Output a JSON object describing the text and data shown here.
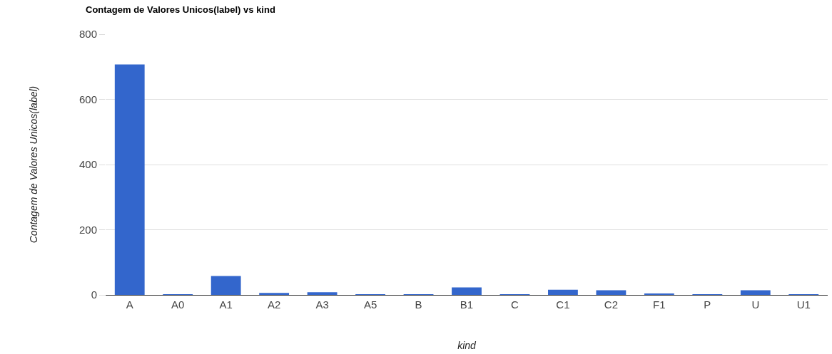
{
  "chart_data": {
    "type": "bar",
    "title": "Contagem de Valores Unicos(label) vs kind",
    "xlabel": "kind",
    "ylabel": "Contagem de Valores Unicos(label)",
    "categories": [
      "A",
      "A0",
      "A1",
      "A2",
      "A3",
      "A5",
      "B",
      "B1",
      "C",
      "C1",
      "C2",
      "F1",
      "P",
      "U",
      "U1"
    ],
    "values": [
      707,
      1,
      58,
      6,
      8,
      1,
      1,
      23,
      1,
      16,
      14,
      4,
      1,
      14,
      1
    ],
    "color": "#3366cc",
    "ylim": [
      0,
      800
    ],
    "yticks": [
      0,
      200,
      400,
      600,
      800
    ],
    "grid": "y",
    "legend": false
  }
}
